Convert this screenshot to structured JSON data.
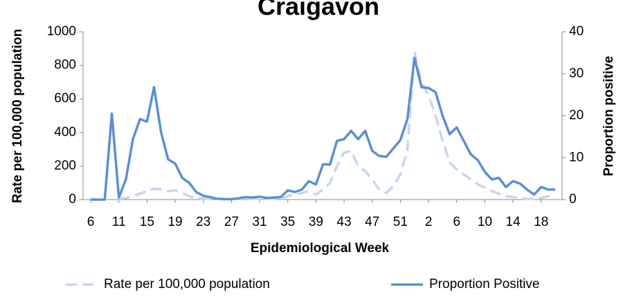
{
  "chart_data": {
    "type": "line",
    "title": "Craigavon",
    "x_label": "Epidemiological Week",
    "y_label": "Rate per 100,000 population",
    "y2_label": "Proportion positive",
    "categories": [
      "6",
      null,
      null,
      null,
      "11",
      null,
      null,
      null,
      "15",
      null,
      null,
      null,
      "19",
      null,
      null,
      null,
      "23",
      null,
      null,
      null,
      "27",
      null,
      null,
      null,
      "31",
      null,
      null,
      null,
      "35",
      null,
      null,
      null,
      "39",
      null,
      null,
      null,
      "43",
      null,
      null,
      null,
      "47",
      null,
      null,
      null,
      "51",
      null,
      null,
      null,
      "2",
      null,
      null,
      null,
      "6",
      null,
      null,
      null,
      "10",
      null,
      null,
      null,
      "14",
      null,
      null,
      null,
      "18",
      null,
      null
    ],
    "series": [
      {
        "name": "Rate per 100,000 population",
        "color": "#c5d6ee",
        "dashed": true,
        "values": [
          null,
          null,
          null,
          null,
          5,
          10,
          20,
          35,
          50,
          65,
          60,
          50,
          55,
          40,
          20,
          10,
          5,
          5,
          5,
          5,
          5,
          5,
          5,
          5,
          5,
          5,
          5,
          5,
          20,
          30,
          40,
          50,
          30,
          60,
          100,
          200,
          280,
          290,
          200,
          170,
          120,
          60,
          40,
          80,
          150,
          300,
          880,
          700,
          620,
          500,
          350,
          220,
          180,
          150,
          120,
          90,
          70,
          50,
          35,
          20,
          15,
          10,
          5,
          5,
          10,
          20,
          20
        ]
      },
      {
        "name": "Proportion Positive",
        "color": "#5b8fd6",
        "axis": "y2",
        "values": [
          0,
          0,
          0,
          20.5,
          0.5,
          4.8,
          14.4,
          19.2,
          18.6,
          26.8,
          16,
          9.6,
          8.6,
          5.2,
          4,
          1.8,
          0.9,
          0.6,
          0.2,
          0.1,
          0.1,
          0.3,
          0.6,
          0.5,
          0.7,
          0.4,
          0.5,
          0.6,
          2.2,
          1.8,
          2.4,
          4.4,
          3.6,
          8.4,
          8.4,
          14,
          14.4,
          16.4,
          14.4,
          16.4,
          11.6,
          10.4,
          10.2,
          12.2,
          14.2,
          19.2,
          33.8,
          26.8,
          26.6,
          25.6,
          20,
          15.6,
          17.2,
          14,
          10.8,
          9.4,
          6.6,
          4.8,
          5.2,
          3,
          4.4,
          3.8,
          2.4,
          1.2,
          3,
          2.4,
          2.4
        ]
      }
    ],
    "ylim": [
      0,
      1000
    ],
    "yticks": [
      0,
      200,
      400,
      600,
      800,
      1000
    ],
    "y2lim": [
      0,
      40
    ],
    "y2ticks": [
      0,
      10,
      20,
      30,
      40
    ],
    "grid": false,
    "legend": "bottom"
  }
}
